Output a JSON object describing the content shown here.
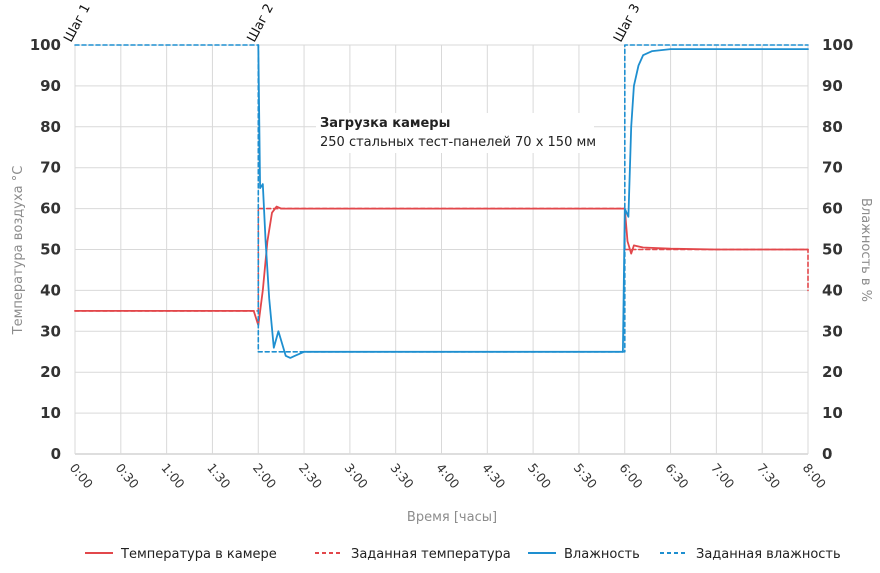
{
  "chart_data": {
    "type": "line",
    "xlabel": "Время [часы]",
    "ylabel_left": "Температура воздуха °С",
    "ylabel_right": "Влажность в %",
    "ylim": [
      0,
      100
    ],
    "xlim": [
      0,
      8
    ],
    "x_ticks": [
      "0:00",
      "0:30",
      "1:00",
      "1:30",
      "2:00",
      "2:30",
      "3:00",
      "3:30",
      "4:00",
      "4:30",
      "5:00",
      "5:30",
      "6:00",
      "6:30",
      "7:00",
      "7:30",
      "8:00"
    ],
    "y_ticks": [
      0,
      10,
      20,
      30,
      40,
      50,
      60,
      70,
      80,
      90,
      100
    ],
    "grid": true,
    "legend_position": "bottom",
    "step_labels": [
      {
        "x": 0,
        "label": "Шаг 1"
      },
      {
        "x": 2,
        "label": "Шаг 2"
      },
      {
        "x": 6,
        "label": "Шаг 3"
      }
    ],
    "annotation": {
      "title": "Загрузка камеры",
      "text": "250 стальных тест-панелей 70 x 150 мм"
    },
    "colors": {
      "temperature": "#e2474b",
      "humidity": "#1e8fd0",
      "grid": "#d9d9d9"
    },
    "series": [
      {
        "name": "Температура в камере",
        "axis": "left",
        "style": "solid",
        "x": [
          0,
          0.5,
          1.0,
          1.5,
          1.95,
          2.0,
          2.05,
          2.1,
          2.15,
          2.2,
          2.25,
          2.5,
          3.0,
          3.5,
          4.0,
          4.5,
          5.0,
          5.5,
          5.98,
          6.0,
          6.03,
          6.07,
          6.1,
          6.2,
          6.5,
          7.0,
          7.5,
          8.0
        ],
        "values": [
          35,
          35,
          35,
          35,
          35,
          31.5,
          40,
          52,
          59,
          60.5,
          60,
          60,
          60,
          60,
          60,
          60,
          60,
          60,
          60,
          60,
          52,
          49,
          51,
          50.5,
          50.2,
          50,
          50,
          50
        ]
      },
      {
        "name": "Заданная температура",
        "axis": "left",
        "style": "dashed",
        "x": [
          0,
          2.0,
          2.0,
          6.0,
          6.0,
          8.0,
          8.0
        ],
        "values": [
          35,
          35,
          60,
          60,
          50,
          50,
          40
        ]
      },
      {
        "name": "Влажность",
        "axis": "right",
        "style": "solid",
        "x": [
          2.0,
          2.02,
          2.05,
          2.08,
          2.12,
          2.17,
          2.22,
          2.26,
          2.3,
          2.35,
          2.4,
          2.5,
          3.0,
          3.5,
          4.0,
          4.5,
          5.0,
          5.5,
          5.98,
          6.0,
          6.04,
          6.07,
          6.1,
          6.15,
          6.2,
          6.3,
          6.5,
          7.0,
          7.5,
          8.0
        ],
        "values": [
          100,
          65,
          66,
          52,
          38,
          26,
          30,
          27,
          24,
          23.5,
          24,
          25,
          25,
          25,
          25,
          25,
          25,
          25,
          25,
          60,
          58,
          80,
          90,
          95,
          97.5,
          98.5,
          99,
          99,
          99,
          99
        ]
      },
      {
        "name": "Заданная влажность",
        "axis": "right",
        "style": "dashed",
        "x": [
          0,
          2.0,
          2.0,
          6.0,
          6.0,
          8.0
        ],
        "values": [
          100,
          100,
          25,
          25,
          100,
          100
        ]
      }
    ]
  }
}
